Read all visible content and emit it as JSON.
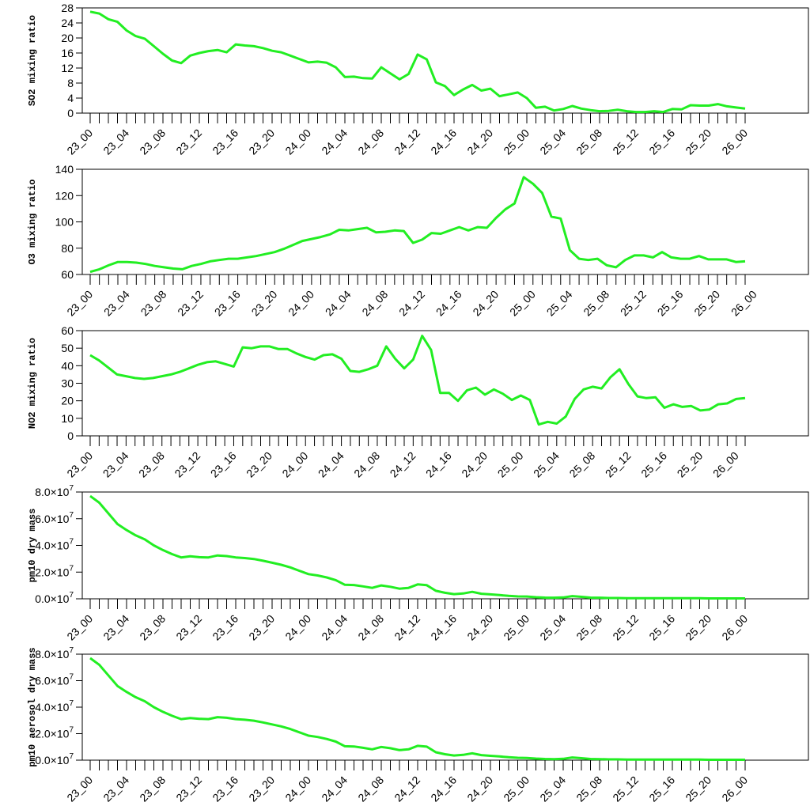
{
  "chart_data": [
    {
      "type": "line",
      "ylabel": "SO2 mixing ratio",
      "ylim": [
        0,
        28
      ],
      "yticks": [
        "0",
        "4",
        "8",
        "12",
        "16",
        "20",
        "24",
        "28"
      ],
      "ytick_values": [
        0,
        4,
        8,
        12,
        16,
        20,
        24,
        28
      ],
      "xtick_labels": [
        "23_00",
        "23_04",
        "23_08",
        "23_12",
        "23_16",
        "23_20",
        "24_00",
        "24_04",
        "24_08",
        "24_12",
        "24_16",
        "24_20",
        "25_00",
        "25_04",
        "25_08",
        "25_12",
        "25_16",
        "25_20",
        "26_00"
      ],
      "color": "#22ee22",
      "series": [
        {
          "values": [
            27,
            26.5,
            25,
            24.3,
            22,
            20.5,
            19.8,
            17.8,
            15.8,
            14,
            13.3,
            15.3,
            16,
            16.5,
            16.8,
            16.2,
            18.3,
            18,
            17.8,
            17.3,
            16.6,
            16.2,
            15.3,
            14.4,
            13.5,
            13.7,
            13.4,
            12.2,
            9.6,
            9.7,
            9.3,
            9.2,
            12.2,
            10.6,
            9,
            10.4,
            15.6,
            14.3,
            8.2,
            7.2,
            4.8,
            6.3,
            7.5,
            6,
            6.5,
            4.5,
            5,
            5.5,
            4,
            1.4,
            1.7,
            0.7,
            1.1,
            1.9,
            1.2,
            0.8,
            0.5,
            0.6,
            0.9,
            0.5,
            0.3,
            0.3,
            0.5,
            0.3,
            1.1,
            1.0,
            2.1,
            2.0,
            2.0,
            2.4,
            1.8,
            1.5,
            1.2
          ]
        }
      ]
    },
    {
      "type": "line",
      "ylabel": "O3 mixing ratio",
      "ylim": [
        60,
        140
      ],
      "yticks": [
        "60",
        "80",
        "100",
        "120",
        "140"
      ],
      "ytick_values": [
        60,
        80,
        100,
        120,
        140
      ],
      "xtick_labels": [
        "23_00",
        "23_04",
        "23_08",
        "23_12",
        "23_16",
        "23_20",
        "24_00",
        "24_04",
        "24_08",
        "24_12",
        "24_16",
        "24_20",
        "25_00",
        "25_04",
        "25_08",
        "25_12",
        "25_16",
        "25_20",
        "26_00"
      ],
      "color": "#22ee22",
      "series": [
        {
          "values": [
            62,
            64,
            67,
            69.5,
            69.5,
            69,
            68,
            66.5,
            65.5,
            64.5,
            64,
            66.5,
            68,
            70,
            71,
            72,
            72,
            73,
            74,
            75.5,
            77,
            79.5,
            82.5,
            85.5,
            87,
            88.5,
            90.5,
            94,
            93.5,
            94.5,
            95.5,
            92,
            92.5,
            93.5,
            93,
            84,
            86.5,
            91.5,
            91,
            93.5,
            96,
            93.5,
            96,
            95.5,
            103,
            109.5,
            114,
            134,
            129,
            122,
            104,
            102.5,
            78.5,
            72,
            71,
            72,
            67,
            65.5,
            71,
            74.5,
            74.5,
            73,
            77,
            73,
            72,
            72,
            74,
            71.5,
            71.5,
            71.5,
            69.5,
            70
          ]
        }
      ]
    },
    {
      "type": "line",
      "ylabel": "NO2 mixing ratio",
      "ylim": [
        0,
        60
      ],
      "yticks": [
        "0",
        "10",
        "20",
        "30",
        "40",
        "50",
        "60"
      ],
      "ytick_values": [
        0,
        10,
        20,
        30,
        40,
        50,
        60
      ],
      "xtick_labels": [
        "23_00",
        "23_04",
        "23_08",
        "23_12",
        "23_16",
        "23_20",
        "24_00",
        "24_04",
        "24_08",
        "24_12",
        "24_16",
        "24_20",
        "25_00",
        "25_04",
        "25_08",
        "25_12",
        "25_16",
        "25_20",
        "26_00"
      ],
      "color": "#22ee22",
      "series": [
        {
          "values": [
            46,
            43,
            39,
            35,
            34,
            33,
            32.5,
            33,
            34,
            35,
            36.5,
            38.5,
            40.5,
            42,
            42.5,
            41,
            39.5,
            50.5,
            50,
            51,
            51,
            49.5,
            49.5,
            47,
            45,
            43.5,
            46,
            46.5,
            44,
            37,
            36.5,
            38,
            40,
            51,
            44,
            38.5,
            43.5,
            57,
            49,
            24.5,
            24.5,
            20,
            26,
            27.5,
            23.5,
            26.5,
            24,
            20.5,
            23,
            20.5,
            6.5,
            8,
            7,
            11,
            21,
            26.5,
            28,
            27,
            33.5,
            38,
            29.5,
            22.5,
            21.5,
            22,
            16,
            18,
            16.5,
            17,
            14.5,
            15,
            18,
            18.5,
            21,
            21.5
          ]
        }
      ]
    },
    {
      "type": "line",
      "ylabel": "pm10 dry mass",
      "ylim": [
        0,
        80000000
      ],
      "yticks": [
        "0.0",
        "2.0",
        "4.0",
        "6.0",
        "8.0"
      ],
      "ytick_values": [
        0,
        20000000,
        40000000,
        60000000,
        80000000
      ],
      "ytick_suffix": "×10",
      "ytick_exponent": "7",
      "xtick_labels": [
        "23_00",
        "23_04",
        "23_08",
        "23_12",
        "23_16",
        "23_20",
        "24_00",
        "24_04",
        "24_08",
        "24_12",
        "24_16",
        "24_20",
        "25_00",
        "25_04",
        "25_08",
        "25_12",
        "25_16",
        "25_20",
        "26_00"
      ],
      "color": "#22ee22",
      "series": [
        {
          "values": [
            77000000,
            72000000,
            64000000,
            56000000,
            51500000,
            47500000,
            44500000,
            40000000,
            36500000,
            33500000,
            31000000,
            31800000,
            31200000,
            31000000,
            32500000,
            32000000,
            31000000,
            30500000,
            29800000,
            28500000,
            27000000,
            25500000,
            23500000,
            21000000,
            18500000,
            17500000,
            16000000,
            14000000,
            10500000,
            10300000,
            9300000,
            8200000,
            10000000,
            9000000,
            7600000,
            8200000,
            10800000,
            10200000,
            6000000,
            4500000,
            3500000,
            4000000,
            5200000,
            3800000,
            3300000,
            2800000,
            2200000,
            1800000,
            1700000,
            1200000,
            900000,
            800000,
            1000000,
            2000000,
            1500000,
            900000,
            800000,
            600000,
            600000,
            500000,
            400000,
            400000,
            400000,
            400000,
            400000,
            400000,
            400000,
            400000,
            300000,
            300000,
            300000,
            300000,
            300000
          ]
        }
      ]
    },
    {
      "type": "line",
      "ylabel": "pm10 aerosol dry mass",
      "ylim": [
        0,
        80000000
      ],
      "yticks": [
        "0.0",
        "2.0",
        "4.0",
        "6.0",
        "8.0"
      ],
      "ytick_values": [
        0,
        20000000,
        40000000,
        60000000,
        80000000
      ],
      "ytick_suffix": "×10",
      "ytick_exponent": "7",
      "xtick_labels": [
        "23_00",
        "23_04",
        "23_08",
        "23_12",
        "23_16",
        "23_20",
        "24_00",
        "24_04",
        "24_08",
        "24_12",
        "24_16",
        "24_20",
        "25_00",
        "25_04",
        "25_08",
        "25_12",
        "25_16",
        "25_20",
        "26_00"
      ],
      "color": "#22ee22",
      "series": [
        {
          "values": [
            77000000,
            72000000,
            64000000,
            56000000,
            51500000,
            47500000,
            44500000,
            40000000,
            36500000,
            33500000,
            31000000,
            31800000,
            31200000,
            31000000,
            32500000,
            32000000,
            31000000,
            30500000,
            29800000,
            28500000,
            27000000,
            25500000,
            23500000,
            21000000,
            18500000,
            17500000,
            16000000,
            14000000,
            10500000,
            10300000,
            9300000,
            8200000,
            10000000,
            9000000,
            7600000,
            8200000,
            10800000,
            10200000,
            6000000,
            4500000,
            3500000,
            4000000,
            5200000,
            3800000,
            3300000,
            2800000,
            2200000,
            1800000,
            1700000,
            1200000,
            900000,
            800000,
            1000000,
            2000000,
            1500000,
            900000,
            800000,
            600000,
            600000,
            500000,
            400000,
            400000,
            400000,
            400000,
            400000,
            400000,
            400000,
            400000,
            300000,
            300000,
            300000,
            300000,
            300000
          ]
        }
      ]
    }
  ]
}
